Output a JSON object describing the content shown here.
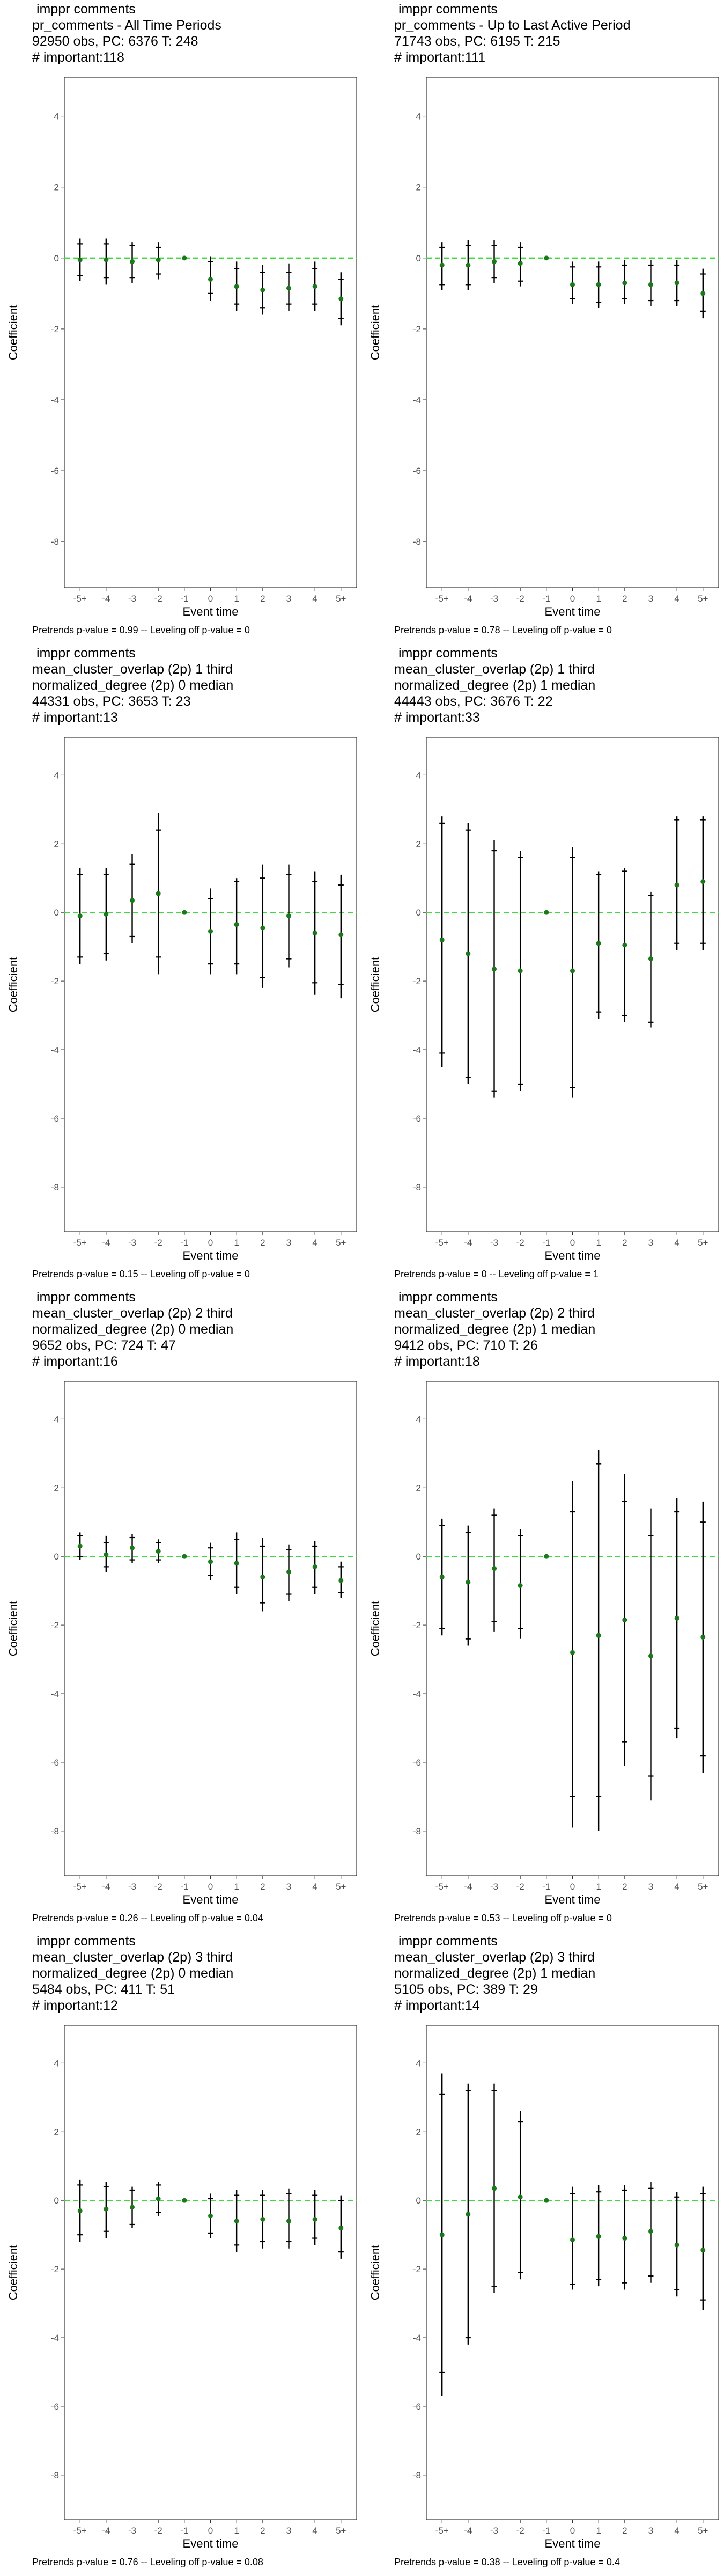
{
  "colors": {
    "zero_line": "#3ddc3d",
    "point": "#1a7a1a",
    "error_bar": "#000000",
    "axis_text": "#4d4d4d",
    "frame": "#333333"
  },
  "y_axis_label": "Coefficient",
  "x_axis_label": "Event time",
  "chart_data": [
    {
      "type": "scatter",
      "title_lines": [
        "imppr comments",
        "pr_comments - All Time Periods",
        "92950 obs, PC: 6376 T: 248",
        "# important:118"
      ],
      "footer": "Pretrends p-value = 0.99 -- Leveling off p-value = 0",
      "categories": [
        "-5+",
        "-4",
        "-3",
        "-2",
        "-1",
        "0",
        "1",
        "2",
        "3",
        "4",
        "5+"
      ],
      "estimate": [
        -0.05,
        -0.05,
        -0.1,
        -0.05,
        0,
        -0.6,
        -0.8,
        -0.9,
        -0.85,
        -0.8,
        -1.15
      ],
      "ci95_low": [
        -0.65,
        -0.75,
        -0.7,
        -0.6,
        0,
        -1.2,
        -1.5,
        -1.6,
        -1.5,
        -1.5,
        -1.9
      ],
      "ci95_high": [
        0.55,
        0.55,
        0.45,
        0.45,
        0,
        0.05,
        -0.1,
        -0.2,
        -0.15,
        -0.1,
        -0.4
      ],
      "ci90_low": [
        -0.5,
        -0.55,
        -0.55,
        -0.45,
        0,
        -1.0,
        -1.3,
        -1.4,
        -1.3,
        -1.3,
        -1.7
      ],
      "ci90_high": [
        0.4,
        0.4,
        0.35,
        0.3,
        0,
        -0.1,
        -0.3,
        -0.4,
        -0.4,
        -0.3,
        -0.6
      ],
      "ylim": [
        -9.3,
        5.1
      ],
      "yticks": [
        -8,
        -6,
        -4,
        -2,
        0,
        2,
        4
      ]
    },
    {
      "type": "scatter",
      "title_lines": [
        "imppr comments",
        "pr_comments - Up to Last Active Period",
        "71743 obs, PC: 6195 T: 215",
        "# important:111"
      ],
      "footer": "Pretrends p-value = 0.78 -- Leveling off p-value = 0",
      "categories": [
        "-5+",
        "-4",
        "-3",
        "-2",
        "-1",
        "0",
        "1",
        "2",
        "3",
        "4",
        "5+"
      ],
      "estimate": [
        -0.2,
        -0.2,
        -0.1,
        -0.15,
        0,
        -0.75,
        -0.75,
        -0.7,
        -0.75,
        -0.7,
        -1.0
      ],
      "ci95_low": [
        -0.9,
        -0.9,
        -0.7,
        -0.8,
        0,
        -1.3,
        -1.4,
        -1.3,
        -1.35,
        -1.35,
        -1.7
      ],
      "ci95_high": [
        0.45,
        0.5,
        0.5,
        0.45,
        0,
        -0.1,
        -0.1,
        -0.05,
        -0.05,
        -0.05,
        -0.3
      ],
      "ci90_low": [
        -0.75,
        -0.75,
        -0.55,
        -0.65,
        0,
        -1.15,
        -1.25,
        -1.15,
        -1.2,
        -1.2,
        -1.5
      ],
      "ci90_high": [
        0.3,
        0.35,
        0.35,
        0.3,
        0,
        -0.25,
        -0.25,
        -0.2,
        -0.2,
        -0.2,
        -0.45
      ],
      "ylim": [
        -9.3,
        5.1
      ],
      "yticks": [
        -8,
        -6,
        -4,
        -2,
        0,
        2,
        4
      ]
    },
    {
      "type": "scatter",
      "title_lines": [
        "imppr comments",
        "mean_cluster_overlap (2p) 1 third",
        "normalized_degree (2p) 0 median",
        "44331 obs, PC: 3653 T: 23",
        "# important:13"
      ],
      "footer": "Pretrends p-value = 0.15 -- Leveling off p-value = 0",
      "categories": [
        "-5+",
        "-4",
        "-3",
        "-2",
        "-1",
        "0",
        "1",
        "2",
        "3",
        "4",
        "5+"
      ],
      "estimate": [
        -0.1,
        -0.05,
        0.35,
        0.55,
        0,
        -0.55,
        -0.35,
        -0.45,
        -0.1,
        -0.6,
        -0.65
      ],
      "ci95_low": [
        -1.5,
        -1.4,
        -0.9,
        -1.8,
        0,
        -1.8,
        -1.8,
        -2.2,
        -1.6,
        -2.4,
        -2.5
      ],
      "ci95_high": [
        1.3,
        1.3,
        1.7,
        2.9,
        0,
        0.7,
        1.0,
        1.4,
        1.4,
        1.2,
        1.1
      ],
      "ci90_low": [
        -1.3,
        -1.2,
        -0.7,
        -1.3,
        0,
        -1.5,
        -1.5,
        -1.9,
        -1.35,
        -2.05,
        -2.1
      ],
      "ci90_high": [
        1.1,
        1.1,
        1.4,
        2.4,
        0,
        0.4,
        0.9,
        1.0,
        1.1,
        0.9,
        0.8
      ],
      "ylim": [
        -9.3,
        5.1
      ],
      "yticks": [
        -8,
        -6,
        -4,
        -2,
        0,
        2,
        4
      ]
    },
    {
      "type": "scatter",
      "title_lines": [
        "imppr comments",
        "mean_cluster_overlap (2p) 1 third",
        "normalized_degree (2p) 1 median",
        "44443 obs, PC: 3676 T: 22",
        "# important:33"
      ],
      "footer": "Pretrends p-value = 0 -- Leveling off p-value = 1",
      "categories": [
        "-5+",
        "-4",
        "-3",
        "-2",
        "-1",
        "0",
        "1",
        "2",
        "3",
        "4",
        "5+"
      ],
      "estimate": [
        -0.8,
        -1.2,
        -1.65,
        -1.7,
        0,
        -1.7,
        -0.9,
        -0.95,
        -1.35,
        0.8,
        0.9
      ],
      "ci95_low": [
        -4.5,
        -5.0,
        -5.4,
        -5.2,
        0,
        -5.4,
        -3.1,
        -3.2,
        -3.35,
        -1.1,
        -1.1
      ],
      "ci95_high": [
        2.8,
        2.6,
        2.1,
        1.8,
        0,
        1.9,
        1.2,
        1.3,
        0.6,
        2.8,
        2.8
      ],
      "ci90_low": [
        -4.1,
        -4.8,
        -5.2,
        -5.0,
        0,
        -5.1,
        -2.9,
        -3.0,
        -3.2,
        -0.9,
        -0.9
      ],
      "ci90_high": [
        2.6,
        2.4,
        1.8,
        1.6,
        0,
        1.6,
        1.1,
        1.2,
        0.5,
        2.7,
        2.7
      ],
      "ylim": [
        -9.3,
        5.1
      ],
      "yticks": [
        -8,
        -6,
        -4,
        -2,
        0,
        2,
        4
      ]
    },
    {
      "type": "scatter",
      "title_lines": [
        "imppr comments",
        "mean_cluster_overlap (2p) 2 third",
        "normalized_degree (2p) 0 median",
        "9652 obs, PC: 724 T: 47",
        "# important:16"
      ],
      "footer": "Pretrends p-value = 0.26 -- Leveling off p-value = 0.04",
      "categories": [
        "-5+",
        "-4",
        "-3",
        "-2",
        "-1",
        "0",
        "1",
        "2",
        "3",
        "4",
        "5+"
      ],
      "estimate": [
        0.3,
        0.05,
        0.25,
        0.15,
        0,
        -0.15,
        -0.2,
        -0.6,
        -0.45,
        -0.3,
        -0.7
      ],
      "ci95_low": [
        -0.1,
        -0.45,
        -0.2,
        -0.2,
        0,
        -0.7,
        -1.1,
        -1.6,
        -1.3,
        -1.1,
        -1.2
      ],
      "ci95_high": [
        0.7,
        0.6,
        0.65,
        0.5,
        0,
        0.4,
        0.7,
        0.55,
        0.35,
        0.45,
        -0.15
      ],
      "ci90_low": [
        0.0,
        -0.3,
        -0.1,
        -0.1,
        0,
        -0.55,
        -0.9,
        -1.35,
        -1.1,
        -0.9,
        -1.05
      ],
      "ci90_high": [
        0.6,
        0.4,
        0.55,
        0.4,
        0,
        0.25,
        0.5,
        0.3,
        0.2,
        0.3,
        -0.3
      ],
      "ylim": [
        -9.3,
        5.1
      ],
      "yticks": [
        -8,
        -6,
        -4,
        -2,
        0,
        2,
        4
      ]
    },
    {
      "type": "scatter",
      "title_lines": [
        "imppr comments",
        "mean_cluster_overlap (2p) 2 third",
        "normalized_degree (2p) 1 median",
        "9412 obs, PC: 710 T: 26",
        "# important:18"
      ],
      "footer": "Pretrends p-value = 0.53 -- Leveling off p-value = 0",
      "categories": [
        "-5+",
        "-4",
        "-3",
        "-2",
        "-1",
        "0",
        "1",
        "2",
        "3",
        "4",
        "5+"
      ],
      "estimate": [
        -0.6,
        -0.75,
        -0.35,
        -0.85,
        0,
        -2.8,
        -2.3,
        -1.85,
        -2.9,
        -1.8,
        -2.35
      ],
      "ci95_low": [
        -2.3,
        -2.6,
        -2.2,
        -2.4,
        0,
        -7.9,
        -8.0,
        -6.1,
        -7.1,
        -5.3,
        -6.3
      ],
      "ci95_high": [
        1.1,
        0.9,
        1.4,
        0.8,
        0,
        2.2,
        3.1,
        2.4,
        1.4,
        1.7,
        1.6
      ],
      "ci90_low": [
        -2.1,
        -2.4,
        -1.9,
        -2.1,
        0,
        -7.0,
        -7.0,
        -5.4,
        -6.4,
        -5.0,
        -5.8
      ],
      "ci90_high": [
        0.9,
        0.7,
        1.2,
        0.6,
        0,
        1.3,
        2.7,
        1.6,
        0.6,
        1.3,
        1.0
      ],
      "ylim": [
        -9.3,
        5.1
      ],
      "yticks": [
        -8,
        -6,
        -4,
        -2,
        0,
        2,
        4
      ]
    },
    {
      "type": "scatter",
      "title_lines": [
        "imppr comments",
        "mean_cluster_overlap (2p) 3 third",
        "normalized_degree (2p) 0 median",
        "5484 obs, PC: 411 T: 51",
        "# important:12"
      ],
      "footer": "Pretrends p-value = 0.76 -- Leveling off p-value = 0.08",
      "categories": [
        "-5+",
        "-4",
        "-3",
        "-2",
        "-1",
        "0",
        "1",
        "2",
        "3",
        "4",
        "5+"
      ],
      "estimate": [
        -0.3,
        -0.25,
        -0.2,
        0.05,
        0,
        -0.45,
        -0.6,
        -0.55,
        -0.6,
        -0.55,
        -0.8
      ],
      "ci95_low": [
        -1.2,
        -1.1,
        -0.8,
        -0.45,
        0,
        -1.1,
        -1.5,
        -1.4,
        -1.4,
        -1.3,
        -1.7
      ],
      "ci95_high": [
        0.6,
        0.55,
        0.4,
        0.55,
        0,
        0.2,
        0.3,
        0.3,
        0.35,
        0.3,
        0.15
      ],
      "ci90_low": [
        -1.0,
        -0.9,
        -0.7,
        -0.35,
        0,
        -0.95,
        -1.3,
        -1.2,
        -1.2,
        -1.1,
        -1.5
      ],
      "ci90_high": [
        0.45,
        0.4,
        0.3,
        0.45,
        0,
        0.05,
        0.15,
        0.15,
        0.2,
        0.15,
        0.0
      ],
      "ylim": [
        -9.3,
        5.1
      ],
      "yticks": [
        -8,
        -6,
        -4,
        -2,
        0,
        2,
        4
      ]
    },
    {
      "type": "scatter",
      "title_lines": [
        "imppr comments",
        "mean_cluster_overlap (2p) 3 third",
        "normalized_degree (2p) 1 median",
        "5105 obs, PC: 389 T: 29",
        "# important:14"
      ],
      "footer": "Pretrends p-value = 0.38 -- Leveling off p-value = 0.4",
      "categories": [
        "-5+",
        "-4",
        "-3",
        "-2",
        "-1",
        "0",
        "1",
        "2",
        "3",
        "4",
        "5+"
      ],
      "estimate": [
        -1.0,
        -0.4,
        0.35,
        0.1,
        0,
        -1.15,
        -1.05,
        -1.1,
        -0.9,
        -1.3,
        -1.45
      ],
      "ci95_low": [
        -5.7,
        -4.2,
        -2.7,
        -2.3,
        0,
        -2.6,
        -2.5,
        -2.6,
        -2.4,
        -2.8,
        -3.2
      ],
      "ci95_high": [
        3.7,
        3.4,
        3.4,
        2.6,
        0,
        0.4,
        0.45,
        0.45,
        0.55,
        0.25,
        0.4
      ],
      "ci90_low": [
        -5.0,
        -4.0,
        -2.5,
        -2.1,
        0,
        -2.45,
        -2.3,
        -2.4,
        -2.2,
        -2.6,
        -2.9
      ],
      "ci90_high": [
        3.1,
        3.2,
        3.2,
        2.3,
        0,
        0.2,
        0.25,
        0.3,
        0.35,
        0.1,
        0.2
      ],
      "ylim": [
        -9.3,
        5.1
      ],
      "yticks": [
        -8,
        -6,
        -4,
        -2,
        0,
        2,
        4
      ]
    }
  ]
}
